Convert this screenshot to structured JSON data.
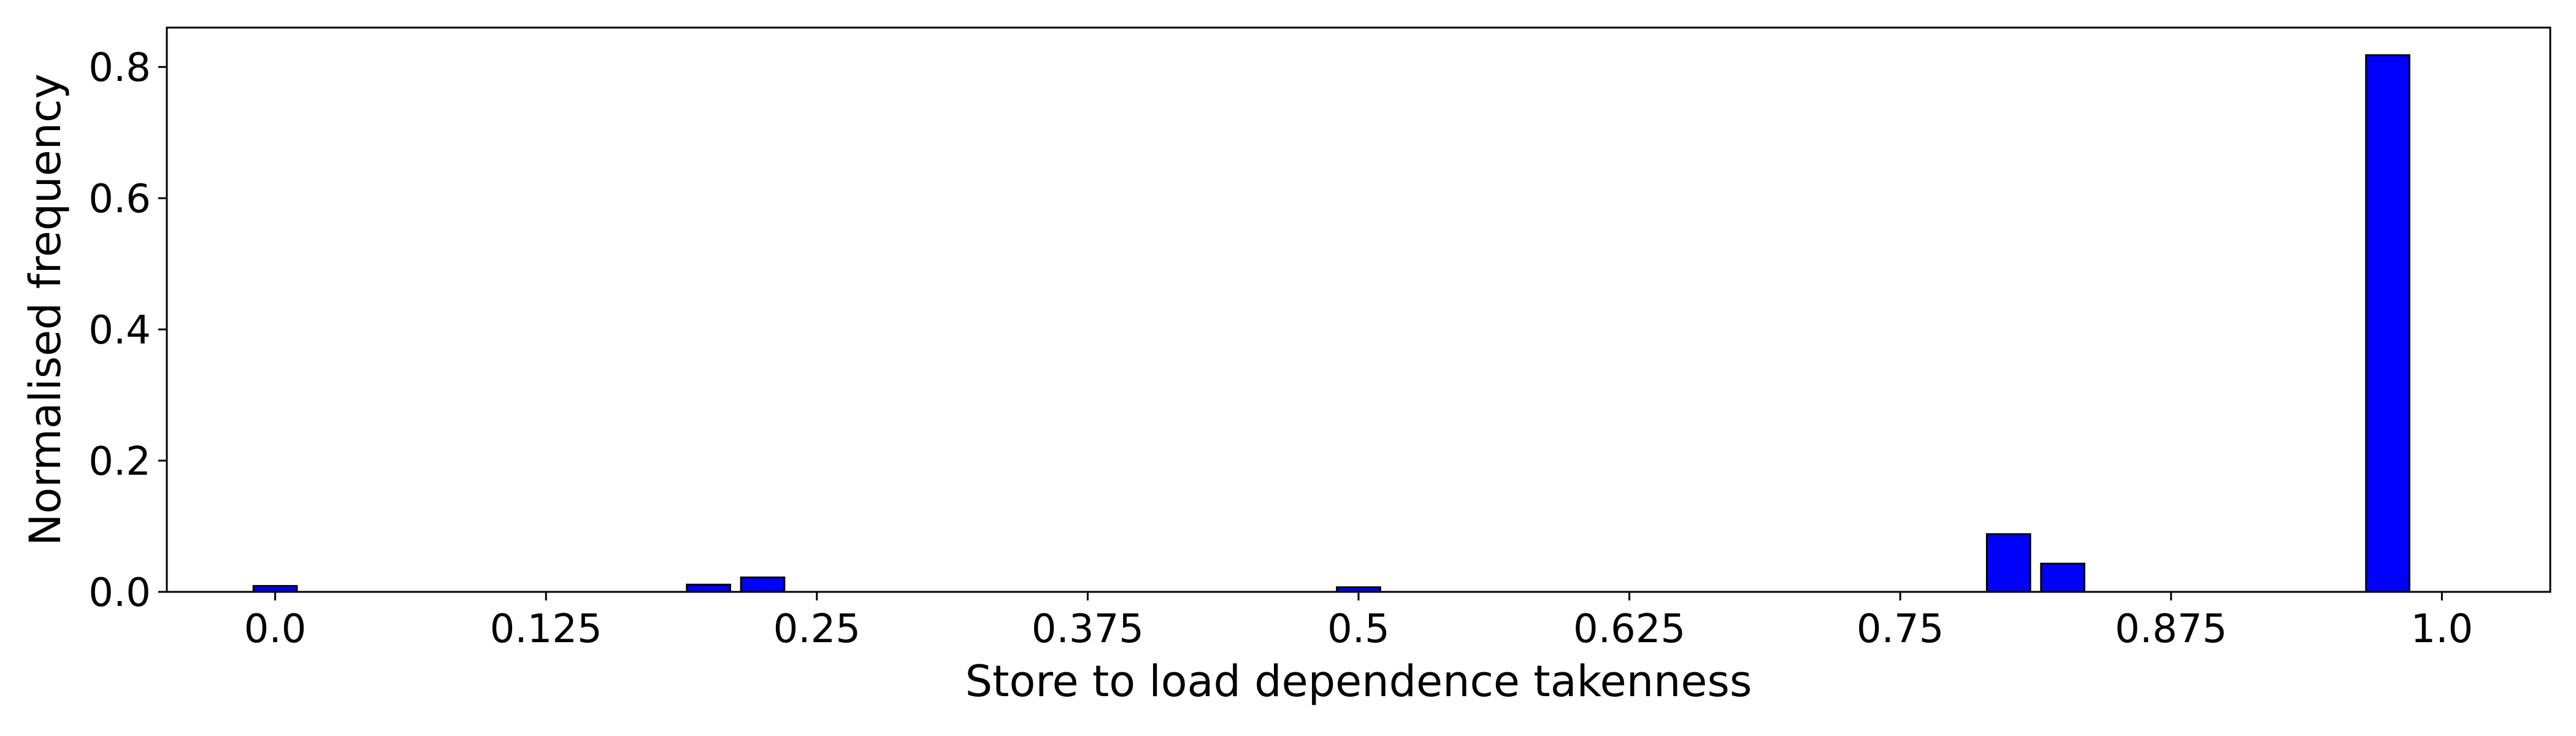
{
  "chart_data": {
    "type": "bar",
    "title": "",
    "xlabel": "Store to load dependence takenness",
    "ylabel": "Normalised frequency",
    "xlim": [
      -0.05,
      1.05
    ],
    "ylim": [
      0,
      0.86
    ],
    "grid": false,
    "x_ticks": [
      "0.0",
      "0.125",
      "0.25",
      "0.375",
      "0.5",
      "0.625",
      "0.75",
      "0.875",
      "1.0"
    ],
    "y_ticks": [
      "0.0",
      "0.2",
      "0.4",
      "0.6",
      "0.8"
    ],
    "bar_width": 0.02,
    "colors": {
      "bar_fill": "#0000ff",
      "bar_edge": "#000000",
      "axis": "#000000"
    },
    "x": [
      0.0,
      0.025,
      0.05,
      0.075,
      0.1,
      0.125,
      0.15,
      0.175,
      0.2,
      0.225,
      0.25,
      0.275,
      0.3,
      0.325,
      0.35,
      0.375,
      0.4,
      0.425,
      0.45,
      0.475,
      0.5,
      0.525,
      0.55,
      0.575,
      0.6,
      0.625,
      0.65,
      0.675,
      0.7,
      0.725,
      0.75,
      0.775,
      0.8,
      0.825,
      0.85,
      0.875,
      0.9,
      0.925,
      0.95,
      0.975
    ],
    "values": [
      0.009,
      0,
      0,
      0,
      0,
      0,
      0,
      0,
      0.011,
      0.022,
      0,
      0,
      0,
      0,
      0,
      0,
      0,
      0,
      0,
      0,
      0.007,
      0,
      0,
      0,
      0,
      0,
      0,
      0,
      0,
      0,
      0,
      0,
      0.088,
      0.043,
      0,
      0,
      0,
      0,
      0,
      0.818
    ]
  }
}
